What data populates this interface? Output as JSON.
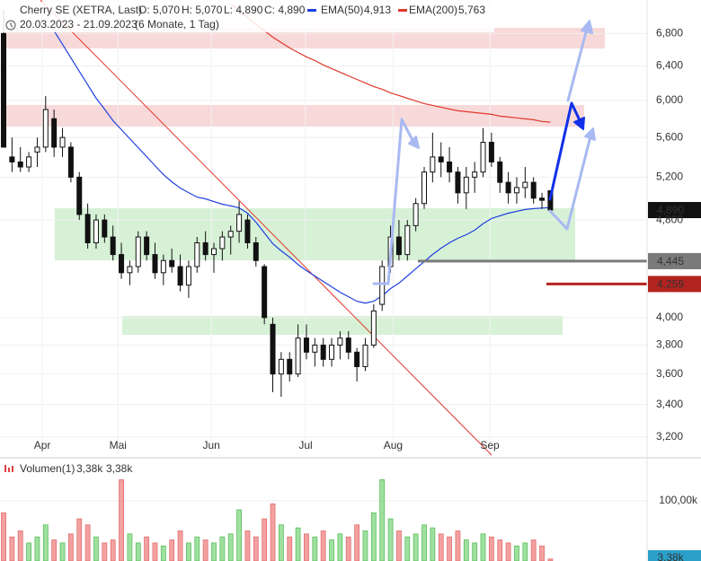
{
  "chart_data": {
    "type": "candlestick",
    "title": "Cherry SE (XETRA, Last)",
    "last_labels": [
      "O: 5,070",
      "H: 5,070",
      "L: 4,890",
      "C: 4,890"
    ],
    "range_label": "20.03.2023 - 21.09.2023",
    "period_label": "(6 Monate, 1 Tag)",
    "log_scale": true,
    "grid": true,
    "up_color": "#ffffff",
    "down_color": "#111111",
    "ylim": [
      3094,
      7240
    ],
    "yticks": [
      {
        "value": 3200,
        "label": "3,200"
      },
      {
        "value": 3400,
        "label": "3,400"
      },
      {
        "value": 3600,
        "label": "3,600"
      },
      {
        "value": 3800,
        "label": "3,800"
      },
      {
        "value": 4000,
        "label": "4,000"
      },
      {
        "value": 4800,
        "label": "4,800"
      },
      {
        "value": 5200,
        "label": "5,200"
      },
      {
        "value": 5600,
        "label": "5,600"
      },
      {
        "value": 6000,
        "label": "6,000"
      },
      {
        "value": 6400,
        "label": "6,400"
      },
      {
        "value": 6800,
        "label": "6,800"
      }
    ],
    "xticks": [
      {
        "value": 4.6,
        "label": "Apr"
      },
      {
        "value": 13.6,
        "label": "Mai"
      },
      {
        "value": 24.7,
        "label": "Jun"
      },
      {
        "value": 35.9,
        "label": "Jul"
      },
      {
        "value": 46.3,
        "label": "Aug"
      },
      {
        "value": 57.8,
        "label": "Sep"
      }
    ],
    "ohlc": [
      [
        6800,
        7100,
        5500,
        5500
      ],
      [
        5400,
        5600,
        5250,
        5350
      ],
      [
        5350,
        5500,
        5250,
        5300
      ],
      [
        5300,
        5450,
        5250,
        5400
      ],
      [
        5450,
        5600,
        5300,
        5500
      ],
      [
        5500,
        6050,
        5450,
        5900
      ],
      [
        5800,
        5900,
        5400,
        5500
      ],
      [
        5500,
        5700,
        5400,
        5600
      ],
      [
        5500,
        5550,
        5150,
        5200
      ],
      [
        5200,
        5250,
        4800,
        4850
      ],
      [
        4850,
        4950,
        4550,
        4600
      ],
      [
        4600,
        4850,
        4550,
        4800
      ],
      [
        4800,
        4850,
        4600,
        4650
      ],
      [
        4650,
        4750,
        4450,
        4500
      ],
      [
        4500,
        4600,
        4300,
        4350
      ],
      [
        4350,
        4450,
        4250,
        4400
      ],
      [
        4400,
        4700,
        4350,
        4650
      ],
      [
        4650,
        4700,
        4450,
        4500
      ],
      [
        4500,
        4600,
        4300,
        4350
      ],
      [
        4350,
        4500,
        4250,
        4450
      ],
      [
        4450,
        4550,
        4350,
        4400
      ],
      [
        4400,
        4500,
        4200,
        4250
      ],
      [
        4250,
        4450,
        4150,
        4400
      ],
      [
        4400,
        4650,
        4350,
        4600
      ],
      [
        4600,
        4700,
        4450,
        4500
      ],
      [
        4500,
        4600,
        4350,
        4550
      ],
      [
        4550,
        4700,
        4450,
        4650
      ],
      [
        4650,
        4750,
        4500,
        4700
      ],
      [
        4700,
        4970,
        4600,
        4850
      ],
      [
        4800,
        4850,
        4550,
        4600
      ],
      [
        4600,
        4650,
        4400,
        4450
      ],
      [
        4400,
        4420,
        3950,
        4000
      ],
      [
        3950,
        4000,
        3480,
        3600
      ],
      [
        3600,
        3750,
        3450,
        3700
      ],
      [
        3700,
        3750,
        3550,
        3600
      ],
      [
        3600,
        3950,
        3580,
        3850
      ],
      [
        3850,
        3950,
        3700,
        3750
      ],
      [
        3750,
        3850,
        3650,
        3800
      ],
      [
        3800,
        3850,
        3650,
        3700
      ],
      [
        3700,
        3850,
        3650,
        3800
      ],
      [
        3800,
        3900,
        3700,
        3850
      ],
      [
        3850,
        3900,
        3700,
        3750
      ],
      [
        3750,
        3780,
        3550,
        3650
      ],
      [
        3650,
        3850,
        3620,
        3800
      ],
      [
        3800,
        4100,
        3780,
        4050
      ],
      [
        4100,
        4450,
        4050,
        4400
      ],
      [
        4400,
        4750,
        4350,
        4650
      ],
      [
        4650,
        4800,
        4450,
        4500
      ],
      [
        4500,
        4800,
        4450,
        4750
      ],
      [
        4750,
        5000,
        4700,
        4950
      ],
      [
        4950,
        5300,
        4900,
        5250
      ],
      [
        5250,
        5650,
        5150,
        5400
      ],
      [
        5400,
        5550,
        5200,
        5350
      ],
      [
        5350,
        5500,
        5150,
        5250
      ],
      [
        5250,
        5300,
        4950,
        5050
      ],
      [
        5050,
        5300,
        4900,
        5200
      ],
      [
        5200,
        5350,
        5050,
        5250
      ],
      [
        5250,
        5700,
        5200,
        5550
      ],
      [
        5550,
        5650,
        5300,
        5350
      ],
      [
        5350,
        5400,
        5050,
        5150
      ],
      [
        5150,
        5250,
        4950,
        5050
      ],
      [
        5050,
        5200,
        4950,
        5100
      ],
      [
        5100,
        5300,
        5000,
        5150
      ],
      [
        5150,
        5200,
        4950,
        5000
      ],
      [
        5000,
        5050,
        4900,
        4980
      ],
      [
        5070,
        5070,
        4890,
        4890
      ]
    ],
    "indicators": [
      {
        "name": "EMA(50)",
        "color": "#1f3fe0",
        "value_label": "4,913",
        "values": [
          null,
          null,
          null,
          null,
          null,
          null,
          6834,
          6665,
          6499,
          6337,
          6180,
          6026,
          5906,
          5779,
          5683,
          5588,
          5495,
          5403,
          5313,
          5225,
          5155,
          5095,
          5052,
          5010,
          4994,
          4968,
          4944,
          4928,
          4911,
          4862,
          4781,
          4685,
          4592,
          4531,
          4478,
          4418,
          4367,
          4323,
          4280,
          4237,
          4194,
          4159,
          4124,
          4110,
          4124,
          4166,
          4223,
          4266,
          4323,
          4382,
          4441,
          4501,
          4554,
          4600,
          4639,
          4670,
          4710,
          4766,
          4814,
          4838,
          4862,
          4879,
          4895,
          4903,
          4908,
          4913
        ]
      },
      {
        "name": "EMA(200)",
        "color": "#e0382c",
        "value_label": "5,763",
        "values": [
          null,
          null,
          null,
          null,
          null,
          null,
          null,
          null,
          null,
          null,
          null,
          null,
          null,
          null,
          null,
          null,
          null,
          null,
          null,
          null,
          null,
          null,
          null,
          null,
          null,
          null,
          null,
          7187,
          7103,
          7008,
          6915,
          6834,
          6755,
          6687,
          6620,
          6565,
          6510,
          6466,
          6412,
          6369,
          6327,
          6284,
          6242,
          6201,
          6159,
          6128,
          6087,
          6057,
          6026,
          5996,
          5966,
          5946,
          5926,
          5906,
          5887,
          5877,
          5867,
          5857,
          5847,
          5828,
          5818,
          5809,
          5799,
          5789,
          5770,
          5763
        ]
      }
    ],
    "levels": [
      {
        "value": 4890,
        "label": "4,890",
        "color": "#111111",
        "line": false
      },
      {
        "value": 4445,
        "label": "4,445",
        "color": "#7a7a7a",
        "line": true
      },
      {
        "value": 4259,
        "label": "4,259",
        "color": "#b3231f",
        "line": true
      }
    ],
    "volume": {
      "name": "Volumen(1)",
      "legend_labels": [
        "3,38k",
        "3,38k"
      ],
      "last_label": "3,38k",
      "ylim": [
        0,
        164000
      ],
      "yticks": [
        {
          "value": 100000,
          "label": "100,00k"
        }
      ],
      "up_color": "#9fe0a0",
      "down_color": "#f3a0a0",
      "values": [
        80000,
        40000,
        50000,
        30000,
        40000,
        60000,
        35000,
        30000,
        45000,
        70000,
        60000,
        40000,
        30000,
        35000,
        135000,
        45000,
        30000,
        40000,
        30000,
        25000,
        35000,
        50000,
        30000,
        40000,
        35000,
        30000,
        40000,
        45000,
        85000,
        50000,
        40000,
        70000,
        95000,
        60000,
        40000,
        55000,
        45000,
        40000,
        50000,
        35000,
        45000,
        40000,
        60000,
        50000,
        80000,
        135000,
        70000,
        50000,
        40000,
        45000,
        60000,
        55000,
        45000,
        40000,
        50000,
        35000,
        30000,
        45000,
        40000,
        35000,
        30000,
        25000,
        30000,
        35000,
        25000,
        3380
      ]
    }
  }
}
